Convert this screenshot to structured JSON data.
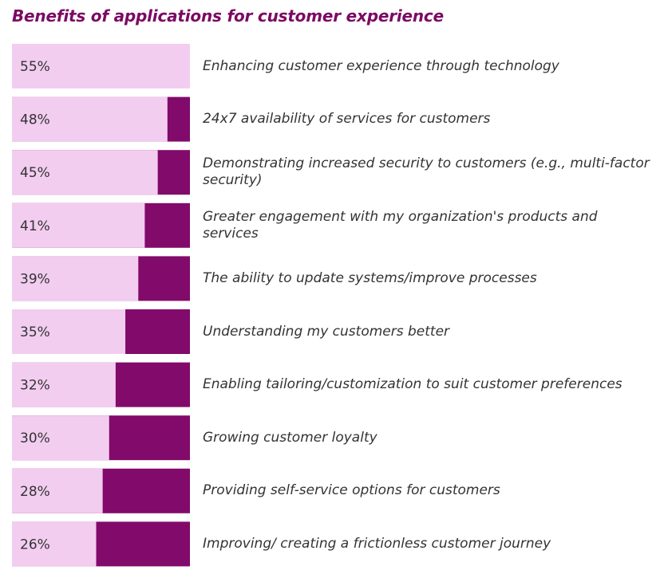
{
  "chart_data": {
    "type": "bar",
    "title": "Benefits of applications for customer experience",
    "categories": [
      "Enhancing customer experience through technology",
      "24x7 availability of services for customers",
      "Demonstrating increased security to customers (e.g., multi-factor security)",
      "Greater engagement with my organization's products and services",
      "The ability to update systems/improve processes",
      "Understanding my customers better",
      "Enabling tailoring/customization to suit customer preferences",
      "Growing customer loyalty",
      "Providing self-service options for customers",
      "Improving/ creating a frictionless customer journey"
    ],
    "values": [
      55,
      48,
      45,
      41,
      39,
      35,
      32,
      30,
      28,
      26
    ],
    "data_labels": [
      "55%",
      "48%",
      "45%",
      "41%",
      "39%",
      "35%",
      "32%",
      "30%",
      "28%",
      "26%"
    ],
    "xlim": [
      0,
      100
    ],
    "colors": {
      "title": "#7b0a63",
      "track": "#f2cdf0",
      "fill": "#820a6a",
      "value_text": "#333333",
      "label_text": "#333333"
    }
  }
}
